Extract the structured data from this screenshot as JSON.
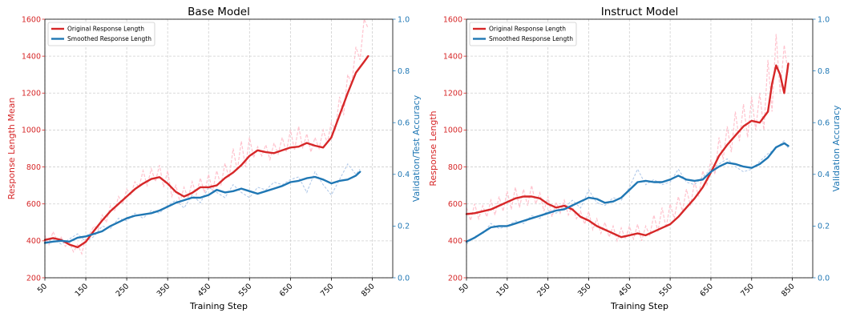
{
  "chart_data": [
    {
      "type": "line",
      "title": "Base Model",
      "xlabel": "Training Step",
      "ylabel": "Response Length Mean",
      "y2label": "Validation/Test Accuracy",
      "xlim": [
        50,
        900
      ],
      "ylim": [
        200,
        1600
      ],
      "y2lim": [
        0.0,
        1.0
      ],
      "xticks": [
        50,
        150,
        250,
        350,
        450,
        550,
        650,
        750,
        850
      ],
      "yticks": [
        200,
        400,
        600,
        800,
        1000,
        1200,
        1400,
        1600
      ],
      "y2ticks": [
        0.0,
        0.2,
        0.4,
        0.6,
        0.8,
        1.0
      ],
      "grid": true,
      "legend_position": "top-left",
      "colors": {
        "left_axis": "#d62728",
        "right_axis": "#1f77b4",
        "raw_length": "#ffc0cb",
        "raw_accuracy": "#aec7e8"
      },
      "series": [
        {
          "name": "Original Response Length",
          "axis": "left",
          "color": "#d62728",
          "x": [
            50,
            70,
            90,
            110,
            130,
            150,
            170,
            190,
            210,
            230,
            250,
            270,
            290,
            310,
            330,
            350,
            370,
            390,
            410,
            430,
            450,
            470,
            490,
            510,
            530,
            550,
            570,
            590,
            610,
            630,
            650,
            670,
            690,
            710,
            730,
            750,
            770,
            790,
            810,
            830,
            840
          ],
          "y": [
            405,
            415,
            405,
            380,
            365,
            395,
            455,
            510,
            560,
            600,
            640,
            680,
            710,
            735,
            745,
            710,
            665,
            640,
            660,
            690,
            690,
            700,
            740,
            770,
            810,
            860,
            890,
            880,
            875,
            890,
            905,
            910,
            930,
            915,
            905,
            960,
            1080,
            1200,
            1310,
            1370,
            1400
          ]
        },
        {
          "name": "Smoothed Response Length",
          "axis": "right",
          "color": "#1f77b4",
          "x": [
            50,
            70,
            90,
            110,
            130,
            150,
            170,
            190,
            210,
            230,
            250,
            270,
            290,
            310,
            330,
            350,
            370,
            390,
            410,
            430,
            450,
            470,
            490,
            510,
            530,
            550,
            570,
            590,
            610,
            630,
            650,
            670,
            690,
            710,
            730,
            750,
            770,
            790,
            810,
            820
          ],
          "y": [
            0.135,
            0.14,
            0.143,
            0.14,
            0.155,
            0.16,
            0.17,
            0.18,
            0.2,
            0.215,
            0.23,
            0.24,
            0.245,
            0.25,
            0.26,
            0.275,
            0.29,
            0.3,
            0.31,
            0.31,
            0.32,
            0.34,
            0.33,
            0.335,
            0.345,
            0.335,
            0.325,
            0.335,
            0.345,
            0.355,
            0.37,
            0.375,
            0.385,
            0.39,
            0.38,
            0.365,
            0.375,
            0.38,
            0.395,
            0.41
          ]
        }
      ],
      "raw_series": [
        {
          "axis": "left",
          "x": [
            50,
            60,
            70,
            80,
            90,
            100,
            110,
            120,
            130,
            140,
            150,
            160,
            170,
            180,
            190,
            200,
            210,
            220,
            230,
            240,
            250,
            260,
            270,
            280,
            290,
            300,
            310,
            320,
            330,
            340,
            350,
            360,
            370,
            380,
            390,
            400,
            410,
            420,
            430,
            440,
            450,
            460,
            470,
            480,
            490,
            500,
            510,
            520,
            530,
            540,
            550,
            560,
            570,
            580,
            590,
            600,
            610,
            620,
            630,
            640,
            650,
            660,
            670,
            680,
            690,
            700,
            710,
            720,
            730,
            740,
            750,
            760,
            770,
            780,
            790,
            800,
            810,
            820,
            830,
            840
          ],
          "y": [
            430,
            380,
            450,
            400,
            420,
            370,
            390,
            340,
            380,
            330,
            420,
            440,
            480,
            460,
            540,
            500,
            590,
            560,
            640,
            600,
            680,
            650,
            720,
            690,
            780,
            700,
            790,
            720,
            810,
            690,
            780,
            640,
            700,
            610,
            690,
            630,
            720,
            650,
            740,
            660,
            760,
            670,
            780,
            700,
            820,
            740,
            900,
            780,
            940,
            800,
            960,
            850,
            910,
            860,
            920,
            840,
            930,
            870,
            960,
            880,
            1000,
            890,
            1020,
            900,
            980,
            880,
            960,
            900,
            1000,
            930,
            1040,
            1000,
            1180,
            1080,
            1300,
            1250,
            1450,
            1380,
            1600,
            1550
          ]
        },
        {
          "axis": "right",
          "x": [
            50,
            70,
            90,
            110,
            130,
            150,
            170,
            190,
            210,
            230,
            250,
            270,
            290,
            310,
            330,
            350,
            370,
            390,
            410,
            430,
            450,
            470,
            490,
            510,
            530,
            550,
            570,
            590,
            610,
            630,
            650,
            670,
            690,
            710,
            730,
            750,
            770,
            790,
            810,
            820
          ],
          "y": [
            0.14,
            0.15,
            0.13,
            0.15,
            0.17,
            0.14,
            0.16,
            0.2,
            0.19,
            0.23,
            0.22,
            0.25,
            0.23,
            0.26,
            0.25,
            0.28,
            0.3,
            0.27,
            0.32,
            0.29,
            0.35,
            0.33,
            0.31,
            0.36,
            0.33,
            0.31,
            0.35,
            0.34,
            0.37,
            0.36,
            0.38,
            0.39,
            0.33,
            0.41,
            0.36,
            0.32,
            0.38,
            0.44,
            0.4,
            0.42
          ]
        }
      ]
    },
    {
      "type": "line",
      "title": "Instruct Model",
      "xlabel": "Training Step",
      "ylabel": "Response Length",
      "y2label": "Validation Accuracy",
      "xlim": [
        50,
        900
      ],
      "ylim": [
        200,
        1600
      ],
      "y2lim": [
        0.0,
        1.0
      ],
      "xticks": [
        50,
        150,
        250,
        350,
        450,
        550,
        650,
        750,
        850
      ],
      "yticks": [
        200,
        400,
        600,
        800,
        1000,
        1200,
        1400,
        1600
      ],
      "y2ticks": [
        0.0,
        0.2,
        0.4,
        0.6,
        0.8,
        1.0
      ],
      "grid": true,
      "legend_position": "top-left",
      "colors": {
        "left_axis": "#d62728",
        "right_axis": "#1f77b4",
        "raw_length": "#ffc0cb",
        "raw_accuracy": "#aec7e8"
      },
      "series": [
        {
          "name": "Original Response Length",
          "axis": "left",
          "color": "#d62728",
          "x": [
            50,
            70,
            90,
            110,
            130,
            150,
            170,
            190,
            210,
            230,
            250,
            270,
            290,
            310,
            330,
            350,
            370,
            390,
            410,
            430,
            450,
            470,
            490,
            510,
            530,
            550,
            570,
            590,
            610,
            630,
            650,
            670,
            690,
            710,
            730,
            750,
            770,
            790,
            800,
            810,
            820,
            830,
            840
          ],
          "y": [
            545,
            550,
            560,
            570,
            590,
            610,
            630,
            640,
            640,
            630,
            600,
            580,
            590,
            570,
            530,
            510,
            480,
            460,
            440,
            420,
            430,
            440,
            430,
            450,
            470,
            490,
            530,
            580,
            630,
            690,
            770,
            860,
            920,
            970,
            1020,
            1050,
            1040,
            1100,
            1250,
            1350,
            1300,
            1200,
            1360
          ]
        },
        {
          "name": "Smoothed Response Length",
          "axis": "right",
          "color": "#1f77b4",
          "x": [
            50,
            70,
            90,
            110,
            130,
            150,
            170,
            190,
            210,
            230,
            250,
            270,
            290,
            310,
            330,
            350,
            370,
            390,
            410,
            430,
            450,
            470,
            490,
            510,
            530,
            550,
            570,
            590,
            610,
            630,
            650,
            670,
            690,
            710,
            730,
            750,
            770,
            790,
            810,
            830,
            840
          ],
          "y": [
            0.14,
            0.155,
            0.175,
            0.195,
            0.2,
            0.2,
            0.21,
            0.22,
            0.23,
            0.24,
            0.25,
            0.26,
            0.265,
            0.28,
            0.295,
            0.31,
            0.305,
            0.29,
            0.295,
            0.31,
            0.34,
            0.37,
            0.375,
            0.37,
            0.37,
            0.38,
            0.395,
            0.38,
            0.375,
            0.38,
            0.41,
            0.43,
            0.445,
            0.44,
            0.43,
            0.425,
            0.44,
            0.465,
            0.505,
            0.52,
            0.51
          ]
        }
      ],
      "raw_series": [
        {
          "axis": "left",
          "x": [
            50,
            60,
            70,
            80,
            90,
            100,
            110,
            120,
            130,
            140,
            150,
            160,
            170,
            180,
            190,
            200,
            210,
            220,
            230,
            240,
            250,
            260,
            270,
            280,
            290,
            300,
            310,
            320,
            330,
            340,
            350,
            360,
            370,
            380,
            390,
            400,
            410,
            420,
            430,
            440,
            450,
            460,
            470,
            480,
            490,
            500,
            510,
            520,
            530,
            540,
            550,
            560,
            570,
            580,
            590,
            600,
            610,
            620,
            630,
            640,
            650,
            660,
            670,
            680,
            690,
            700,
            710,
            720,
            730,
            740,
            750,
            760,
            770,
            780,
            790,
            800,
            810,
            820,
            830,
            840
          ],
          "y": [
            580,
            510,
            600,
            520,
            590,
            530,
            620,
            540,
            640,
            560,
            670,
            570,
            690,
            580,
            680,
            590,
            700,
            600,
            660,
            560,
            640,
            530,
            610,
            550,
            620,
            540,
            590,
            520,
            560,
            490,
            560,
            460,
            520,
            440,
            500,
            420,
            480,
            400,
            470,
            410,
            480,
            410,
            490,
            400,
            480,
            430,
            540,
            450,
            580,
            470,
            600,
            520,
            640,
            560,
            680,
            590,
            720,
            640,
            780,
            700,
            840,
            760,
            960,
            840,
            1020,
            880,
            1100,
            940,
            1140,
            960,
            1180,
            1000,
            1200,
            1000,
            1380,
            1100,
            1520,
            1200,
            1460,
            1300
          ]
        },
        {
          "axis": "right",
          "x": [
            50,
            70,
            90,
            110,
            130,
            150,
            170,
            190,
            210,
            230,
            250,
            270,
            290,
            310,
            330,
            350,
            370,
            390,
            410,
            430,
            450,
            470,
            490,
            510,
            530,
            550,
            570,
            590,
            610,
            630,
            650,
            670,
            690,
            710,
            730,
            750,
            770,
            790,
            810,
            830,
            840
          ],
          "y": [
            0.13,
            0.16,
            0.17,
            0.21,
            0.19,
            0.2,
            0.22,
            0.21,
            0.24,
            0.23,
            0.26,
            0.25,
            0.27,
            0.3,
            0.27,
            0.34,
            0.29,
            0.28,
            0.31,
            0.3,
            0.35,
            0.42,
            0.36,
            0.38,
            0.36,
            0.37,
            0.42,
            0.37,
            0.36,
            0.39,
            0.42,
            0.44,
            0.46,
            0.43,
            0.41,
            0.42,
            0.45,
            0.48,
            0.5,
            0.53,
            0.5
          ]
        }
      ]
    }
  ]
}
